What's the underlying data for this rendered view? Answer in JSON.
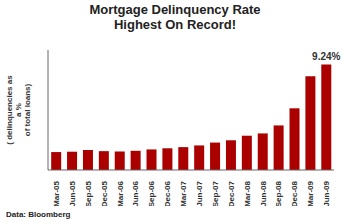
{
  "chart_data": {
    "type": "bar",
    "title": "Mortgage Delinquency Rate\nHighest On Record!",
    "ylabel": "( delinquencies as\na %\nof total loans)",
    "annotation": "9.24%",
    "source": "Data: Bloomberg",
    "categories": [
      "Mar-05",
      "Jun-05",
      "Sep-05",
      "Dec-05",
      "Mar-06",
      "Jun-06",
      "Sep-06",
      "Dec-06",
      "Mar-07",
      "Jun-07",
      "Sep-07",
      "Dec-07",
      "Mar-08",
      "Jun-08",
      "Sep-08",
      "Dec-08",
      "Mar-09",
      "Jun-09"
    ],
    "values": [
      1.57,
      1.6,
      1.75,
      1.65,
      1.62,
      1.68,
      1.8,
      1.9,
      2.0,
      2.15,
      2.4,
      2.6,
      3.0,
      3.2,
      3.9,
      5.4,
      8.2,
      9.24
    ],
    "color": "#AA0000",
    "ylim": [
      0,
      10.5
    ],
    "tick_labels": "x",
    "grid": false
  }
}
